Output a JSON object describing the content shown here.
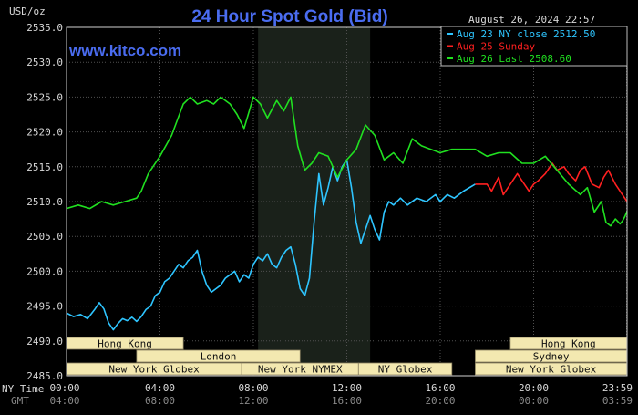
{
  "chart_data": {
    "type": "line",
    "title": "24 Hour Spot Gold (Bid)",
    "brand": "www.kitco.com",
    "timestamp": "August 26, 2024 22:57",
    "unit_label": "USD/oz",
    "ylim": [
      2485.0,
      2535.0
    ],
    "y_ticks": [
      "2535.0",
      "2530.0",
      "2525.0",
      "2520.0",
      "2515.0",
      "2510.0",
      "2505.0",
      "2500.0",
      "2495.0",
      "2490.0",
      "2485.0"
    ],
    "x_row1_label": "NY Time",
    "x_row2_label": "GMT",
    "x_ticks_ny": [
      "00:00",
      "04:00",
      "08:00",
      "12:00",
      "16:00",
      "20:00",
      "23:59"
    ],
    "x_ticks_gmt": [
      "04:00",
      "08:00",
      "12:00",
      "16:00",
      "20:00",
      "00:00",
      "03:59"
    ],
    "x_tick_hours": [
      0,
      4,
      8,
      12,
      16,
      20,
      23.98
    ],
    "legend": [
      {
        "label": "Aug 23 NY close 2512.50",
        "color": "#2ec5ff"
      },
      {
        "label": "Aug 25 Sunday",
        "color": "#ff2020"
      },
      {
        "label": "Aug 26 Last 2508.60",
        "color": "#20e020"
      }
    ],
    "sessions": [
      {
        "label": "Hong Kong",
        "start": 0,
        "end": 5.0,
        "row": 0
      },
      {
        "label": "Hong Kong",
        "start": 19.0,
        "end": 23.99,
        "row": 0
      },
      {
        "label": "London",
        "start": 3.0,
        "end": 10.0,
        "row": 1
      },
      {
        "label": "Sydney",
        "start": 17.5,
        "end": 23.99,
        "row": 1
      },
      {
        "label": "New York Globex",
        "start": 0,
        "end": 7.5,
        "row": 2
      },
      {
        "label": "New York NYMEX",
        "start": 7.5,
        "end": 12.5,
        "row": 2
      },
      {
        "label": "NY Globex",
        "start": 12.5,
        "end": 16.5,
        "row": 2
      },
      {
        "label": "New York Globex",
        "start": 17.5,
        "end": 23.99,
        "row": 2
      }
    ],
    "shaded_region": [
      8.2,
      13.0
    ],
    "series": [
      {
        "name": "Aug 23 NY close 2512.50",
        "color": "#2ec5ff",
        "x": [
          0,
          0.3,
          0.6,
          0.9,
          1.2,
          1.4,
          1.6,
          1.8,
          2.0,
          2.2,
          2.4,
          2.6,
          2.8,
          3.0,
          3.2,
          3.4,
          3.6,
          3.8,
          4.0,
          4.2,
          4.4,
          4.6,
          4.8,
          5.0,
          5.2,
          5.4,
          5.6,
          5.8,
          6.0,
          6.2,
          6.4,
          6.6,
          6.8,
          7.0,
          7.2,
          7.4,
          7.6,
          7.8,
          8.0,
          8.2,
          8.4,
          8.6,
          8.8,
          9.0,
          9.2,
          9.4,
          9.6,
          9.8,
          10.0,
          10.2,
          10.4,
          10.6,
          10.8,
          11.0,
          11.2,
          11.4,
          11.6,
          11.8,
          12.0,
          12.2,
          12.4,
          12.6,
          12.8,
          13.0,
          13.2,
          13.4,
          13.6,
          13.8,
          14.0,
          14.3,
          14.6,
          15.0,
          15.4,
          15.8,
          16.0,
          16.3,
          16.6,
          17.0,
          17.5
        ],
        "y": [
          2494.0,
          2493.5,
          2493.8,
          2493.2,
          2494.5,
          2495.5,
          2494.6,
          2492.6,
          2491.6,
          2492.5,
          2493.2,
          2492.9,
          2493.4,
          2492.8,
          2493.5,
          2494.5,
          2495.0,
          2496.5,
          2497.0,
          2498.5,
          2499.0,
          2500.0,
          2501.0,
          2500.5,
          2501.5,
          2502.0,
          2503.0,
          2500.0,
          2498.0,
          2497.0,
          2497.5,
          2498.0,
          2499.0,
          2499.5,
          2500.0,
          2498.5,
          2499.5,
          2499.0,
          2501.0,
          2502.0,
          2501.5,
          2502.5,
          2501.0,
          2500.5,
          2502.0,
          2503.0,
          2503.5,
          2501.0,
          2497.5,
          2496.5,
          2499.0,
          2507.0,
          2514.0,
          2509.5,
          2512.0,
          2515.0,
          2513.0,
          2515.0,
          2516.0,
          2512.0,
          2507.0,
          2504.0,
          2506.0,
          2508.0,
          2506.0,
          2504.5,
          2508.5,
          2510.0,
          2509.5,
          2510.5,
          2509.5,
          2510.5,
          2510.0,
          2511.0,
          2510.0,
          2511.0,
          2510.5,
          2511.5,
          2512.5
        ]
      },
      {
        "name": "Aug 25 Sunday",
        "color": "#ff2020",
        "x": [
          17.5,
          18.0,
          18.2,
          18.5,
          18.7,
          19.0,
          19.3,
          19.5,
          19.8,
          20.0,
          20.2,
          20.5,
          20.8,
          21.0,
          21.3,
          21.5,
          21.8,
          22.0,
          22.2,
          22.5,
          22.8,
          23.0,
          23.2,
          23.5,
          23.8,
          24.0
        ],
        "y": [
          2512.5,
          2512.5,
          2511.5,
          2513.5,
          2511.0,
          2512.5,
          2514.0,
          2513.0,
          2511.5,
          2512.5,
          2513.0,
          2514.0,
          2515.5,
          2514.5,
          2515.0,
          2514.0,
          2513.0,
          2514.5,
          2515.0,
          2512.5,
          2512.0,
          2513.5,
          2514.5,
          2512.5,
          2511.0,
          2510.0
        ]
      },
      {
        "name": "Aug 26 Last 2508.60",
        "color": "#20e020",
        "x": [
          0,
          0.5,
          1.0,
          1.5,
          2.0,
          2.5,
          3.0,
          3.2,
          3.5,
          4.0,
          4.5,
          5.0,
          5.3,
          5.6,
          6.0,
          6.3,
          6.6,
          7.0,
          7.3,
          7.6,
          8.0,
          8.3,
          8.6,
          9.0,
          9.3,
          9.6,
          9.9,
          10.2,
          10.5,
          10.8,
          11.2,
          11.6,
          12.0,
          12.4,
          12.8,
          13.2,
          13.6,
          14.0,
          14.4,
          14.8,
          15.2,
          15.6,
          16.0,
          16.5,
          17.0,
          17.5,
          18.0,
          18.5,
          19.0,
          19.5,
          20.0,
          20.5,
          21.0,
          21.5,
          22.0,
          22.3,
          22.6,
          22.9,
          23.1,
          23.3,
          23.5,
          23.7,
          23.8,
          23.9,
          24.0
        ],
        "y": [
          2509.0,
          2509.5,
          2509.0,
          2510.0,
          2509.5,
          2510.0,
          2510.5,
          2511.5,
          2514.0,
          2516.5,
          2519.5,
          2524.0,
          2525.0,
          2524.0,
          2524.5,
          2524.0,
          2525.0,
          2524.0,
          2522.5,
          2520.5,
          2525.0,
          2524.0,
          2522.0,
          2524.5,
          2523.0,
          2525.0,
          2518.0,
          2514.5,
          2515.5,
          2517.0,
          2516.5,
          2513.5,
          2516.0,
          2517.5,
          2521.0,
          2519.5,
          2516.0,
          2517.0,
          2515.5,
          2519.0,
          2518.0,
          2517.5,
          2517.0,
          2517.5,
          2517.5,
          2517.5,
          2516.5,
          2517.0,
          2517.0,
          2515.5,
          2515.5,
          2516.5,
          2514.5,
          2512.5,
          2511.0,
          2512.0,
          2508.5,
          2510.0,
          2507.0,
          2506.5,
          2507.5,
          2506.8,
          2507.2,
          2507.8,
          2508.6
        ]
      }
    ]
  }
}
